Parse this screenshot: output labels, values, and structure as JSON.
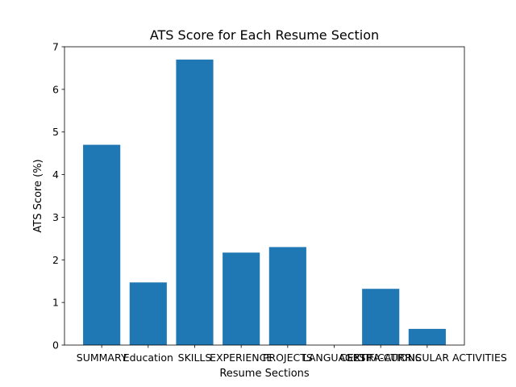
{
  "chart_data": {
    "type": "bar",
    "title": "ATS Score for Each Resume Section",
    "xlabel": "Resume Sections",
    "ylabel": "ATS Score (%)",
    "categories": [
      "SUMMARY",
      "Education",
      "SKILLS",
      "EXPERIENCE",
      "PROJECTS",
      "LANGUAGES",
      "CERTIFICATIONS",
      "EXTRA-CURRICULAR ACTIVITIES"
    ],
    "values": [
      4.7,
      1.47,
      6.7,
      2.17,
      2.3,
      0,
      1.32,
      0.38
    ],
    "ylim": [
      0,
      7
    ],
    "yticks": [
      0,
      1,
      2,
      3,
      4,
      5,
      6,
      7
    ],
    "grid": false,
    "bar_color": "#1f77b4"
  }
}
